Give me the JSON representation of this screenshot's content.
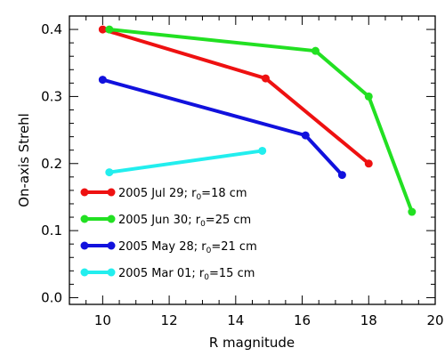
{
  "chart_data": {
    "type": "line",
    "xlabel": "R magnitude",
    "ylabel": "On-axis Strehl",
    "xlim": [
      9,
      20
    ],
    "ylim": [
      -0.01,
      0.42
    ],
    "x_ticks": [
      "10",
      "12",
      "14",
      "16",
      "18",
      "20"
    ],
    "y_ticks": [
      "0.0",
      "0.1",
      "0.2",
      "0.3",
      "0.4"
    ],
    "grid": false,
    "legend_position": "lower-left",
    "series": [
      {
        "label_main": "2005 Jul 29; r",
        "label_sub": "0",
        "label_tail": "=18 cm",
        "color": "#ee1111",
        "points": [
          [
            10.0,
            0.4
          ],
          [
            14.9,
            0.327
          ],
          [
            18.0,
            0.2
          ]
        ]
      },
      {
        "label_main": "2005 Jun 30; r",
        "label_sub": "0",
        "label_tail": "=25 cm",
        "color": "#22e022",
        "points": [
          [
            10.2,
            0.4
          ],
          [
            16.4,
            0.368
          ],
          [
            18.0,
            0.3
          ],
          [
            19.3,
            0.128
          ]
        ]
      },
      {
        "label_main": "2005 May 28; r",
        "label_sub": "0",
        "label_tail": "=21 cm",
        "color": "#1111dd",
        "points": [
          [
            10.0,
            0.325
          ],
          [
            16.1,
            0.242
          ],
          [
            17.2,
            0.183
          ]
        ]
      },
      {
        "label_main": "2005 Mar 01; r",
        "label_sub": "0",
        "label_tail": "=15 cm",
        "color": "#22eeee",
        "points": [
          [
            10.2,
            0.187
          ],
          [
            14.8,
            0.219
          ]
        ]
      }
    ]
  }
}
